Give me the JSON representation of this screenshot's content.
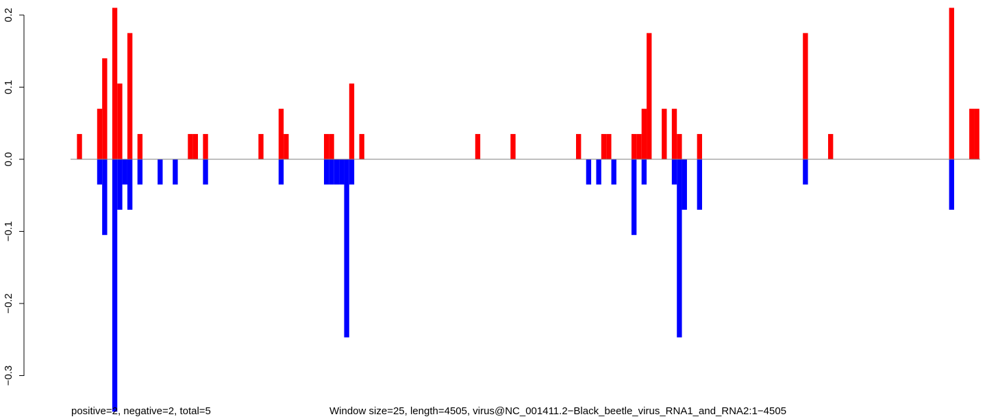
{
  "chart_data": {
    "type": "bar",
    "title": "",
    "xlabel": "",
    "ylabel": "",
    "ylim": [
      -0.33,
      0.21
    ],
    "y_ticks": [
      -0.3,
      -0.2,
      -0.1,
      0.0,
      0.1,
      0.2
    ],
    "y_tick_labels": [
      "−0.3",
      "−0.2",
      "−0.1",
      "0.0",
      "0.1",
      "0.2"
    ],
    "baseline": 0,
    "window_size": 25,
    "x_range": [
      1,
      4505
    ],
    "series": [
      {
        "color": "#ff0000",
        "bars": [
          {
            "x": 26,
            "value": 0.035
          },
          {
            "x": 126,
            "value": 0.07
          },
          {
            "x": 151,
            "value": 0.14
          },
          {
            "x": 201,
            "value": 0.21
          },
          {
            "x": 226,
            "value": 0.105
          },
          {
            "x": 276,
            "value": 0.175
          },
          {
            "x": 326,
            "value": 0.035
          },
          {
            "x": 576,
            "value": 0.035
          },
          {
            "x": 601,
            "value": 0.035
          },
          {
            "x": 651,
            "value": 0.035
          },
          {
            "x": 926,
            "value": 0.035
          },
          {
            "x": 1026,
            "value": 0.07
          },
          {
            "x": 1051,
            "value": 0.035
          },
          {
            "x": 1251,
            "value": 0.035
          },
          {
            "x": 1276,
            "value": 0.035
          },
          {
            "x": 1376,
            "value": 0.105
          },
          {
            "x": 1426,
            "value": 0.035
          },
          {
            "x": 2001,
            "value": 0.035
          },
          {
            "x": 2176,
            "value": 0.035
          },
          {
            "x": 2501,
            "value": 0.035
          },
          {
            "x": 2626,
            "value": 0.035
          },
          {
            "x": 2651,
            "value": 0.035
          },
          {
            "x": 2776,
            "value": 0.035
          },
          {
            "x": 2801,
            "value": 0.035
          },
          {
            "x": 2826,
            "value": 0.07
          },
          {
            "x": 2851,
            "value": 0.175
          },
          {
            "x": 2926,
            "value": 0.07
          },
          {
            "x": 2976,
            "value": 0.07
          },
          {
            "x": 3001,
            "value": 0.035
          },
          {
            "x": 3101,
            "value": 0.035
          },
          {
            "x": 3626,
            "value": 0.175
          },
          {
            "x": 3751,
            "value": 0.035
          },
          {
            "x": 4351,
            "value": 0.21
          },
          {
            "x": 4451,
            "value": 0.07
          },
          {
            "x": 4476,
            "value": 0.07
          }
        ]
      },
      {
        "color": "#0000ff",
        "bars": [
          {
            "x": 126,
            "value": -0.035
          },
          {
            "x": 151,
            "value": -0.105
          },
          {
            "x": 201,
            "value": -0.35
          },
          {
            "x": 226,
            "value": -0.07
          },
          {
            "x": 251,
            "value": -0.035
          },
          {
            "x": 276,
            "value": -0.07
          },
          {
            "x": 326,
            "value": -0.035
          },
          {
            "x": 426,
            "value": -0.035
          },
          {
            "x": 501,
            "value": -0.035
          },
          {
            "x": 651,
            "value": -0.035
          },
          {
            "x": 1026,
            "value": -0.035
          },
          {
            "x": 1251,
            "value": -0.035
          },
          {
            "x": 1276,
            "value": -0.035
          },
          {
            "x": 1301,
            "value": -0.035
          },
          {
            "x": 1326,
            "value": -0.035
          },
          {
            "x": 1351,
            "value": -0.247
          },
          {
            "x": 1376,
            "value": -0.035
          },
          {
            "x": 2551,
            "value": -0.035
          },
          {
            "x": 2601,
            "value": -0.035
          },
          {
            "x": 2676,
            "value": -0.035
          },
          {
            "x": 2776,
            "value": -0.105
          },
          {
            "x": 2826,
            "value": -0.035
          },
          {
            "x": 2976,
            "value": -0.035
          },
          {
            "x": 3001,
            "value": -0.247
          },
          {
            "x": 3026,
            "value": -0.07
          },
          {
            "x": 3101,
            "value": -0.07
          },
          {
            "x": 3626,
            "value": -0.035
          },
          {
            "x": 4351,
            "value": -0.07
          }
        ]
      }
    ],
    "captions": {
      "left": "positive=2, negative=2, total=5",
      "right": "Window size=25, length=4505, virus@NC_001411.2−Black_beetle_virus_RNA1_and_RNA2:1−4505"
    },
    "colors": {
      "positive": "#ff0000",
      "negative": "#0000ff",
      "baseline": "#7f7f7f",
      "axis": "#000000"
    }
  }
}
